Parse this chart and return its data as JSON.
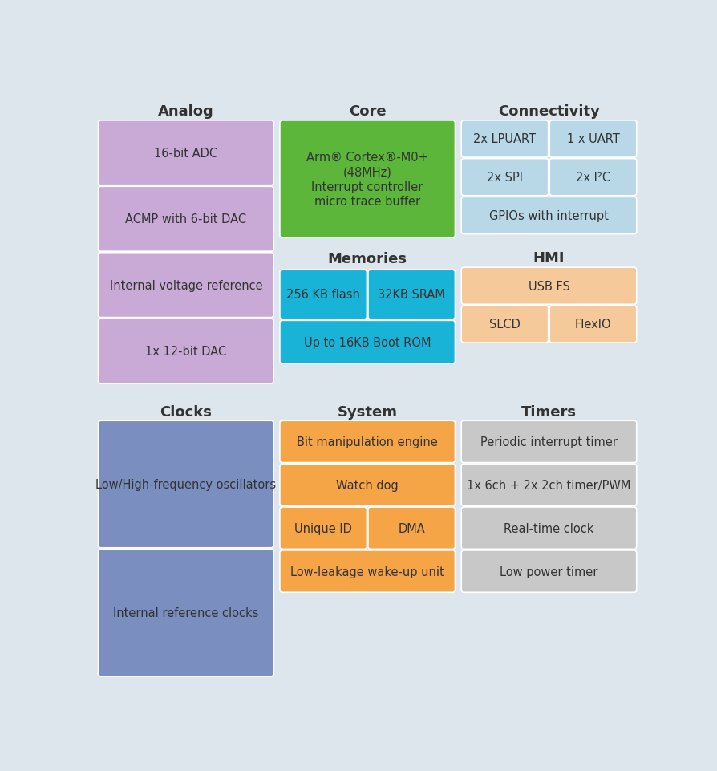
{
  "bg_color": "#dde5ed",
  "colors": {
    "purple": "#c9aad6",
    "green": "#5cb63a",
    "light_blue": "#b8d8e8",
    "cyan": "#1ab3d8",
    "peach": "#f5c99a",
    "steel_blue": "#7a8ec0",
    "gray": "#c8c8c8",
    "orange": "#f5a545",
    "text_dark": "#333333",
    "text_white": "#ffffff"
  },
  "analog_items": [
    "16-bit ADC",
    "ACMP with 6-bit DAC",
    "Internal voltage reference",
    "1x 12-bit DAC"
  ],
  "core_text": "Arm® Cortex®-M0+\n(48MHz)\nInterrupt controller\nmicro trace buffer",
  "mem_items_row1": [
    "256 KB flash",
    "32KB SRAM"
  ],
  "mem_item_row2": "Up to 16KB Boot ROM",
  "conn_row1": [
    "2x LPUART",
    "1 x UART"
  ],
  "conn_row2": [
    "2x SPI",
    "2x I²C"
  ],
  "conn_row3": "GPIOs with interrupt",
  "hmi_row1": "USB FS",
  "hmi_row2": [
    "SLCD",
    "FlexIO"
  ],
  "clk_items": [
    "Low/High-frequency oscillators",
    "Internal reference clocks"
  ],
  "sys_items": [
    "Bit manipulation engine",
    "Watch dog"
  ],
  "sys_split": [
    "Unique ID",
    "DMA"
  ],
  "sys_last": "Low-leakage wake-up unit",
  "timer_items": [
    "Periodic interrupt timer",
    "1x 6ch + 2x 2ch timer/PWM",
    "Real-time clock",
    "Low power timer"
  ],
  "headers": {
    "analog": "Analog",
    "core": "Core",
    "connectivity": "Connectivity",
    "memories": "Memories",
    "hmi": "HMI",
    "clocks": "Clocks",
    "system": "System",
    "timers": "Timers"
  }
}
